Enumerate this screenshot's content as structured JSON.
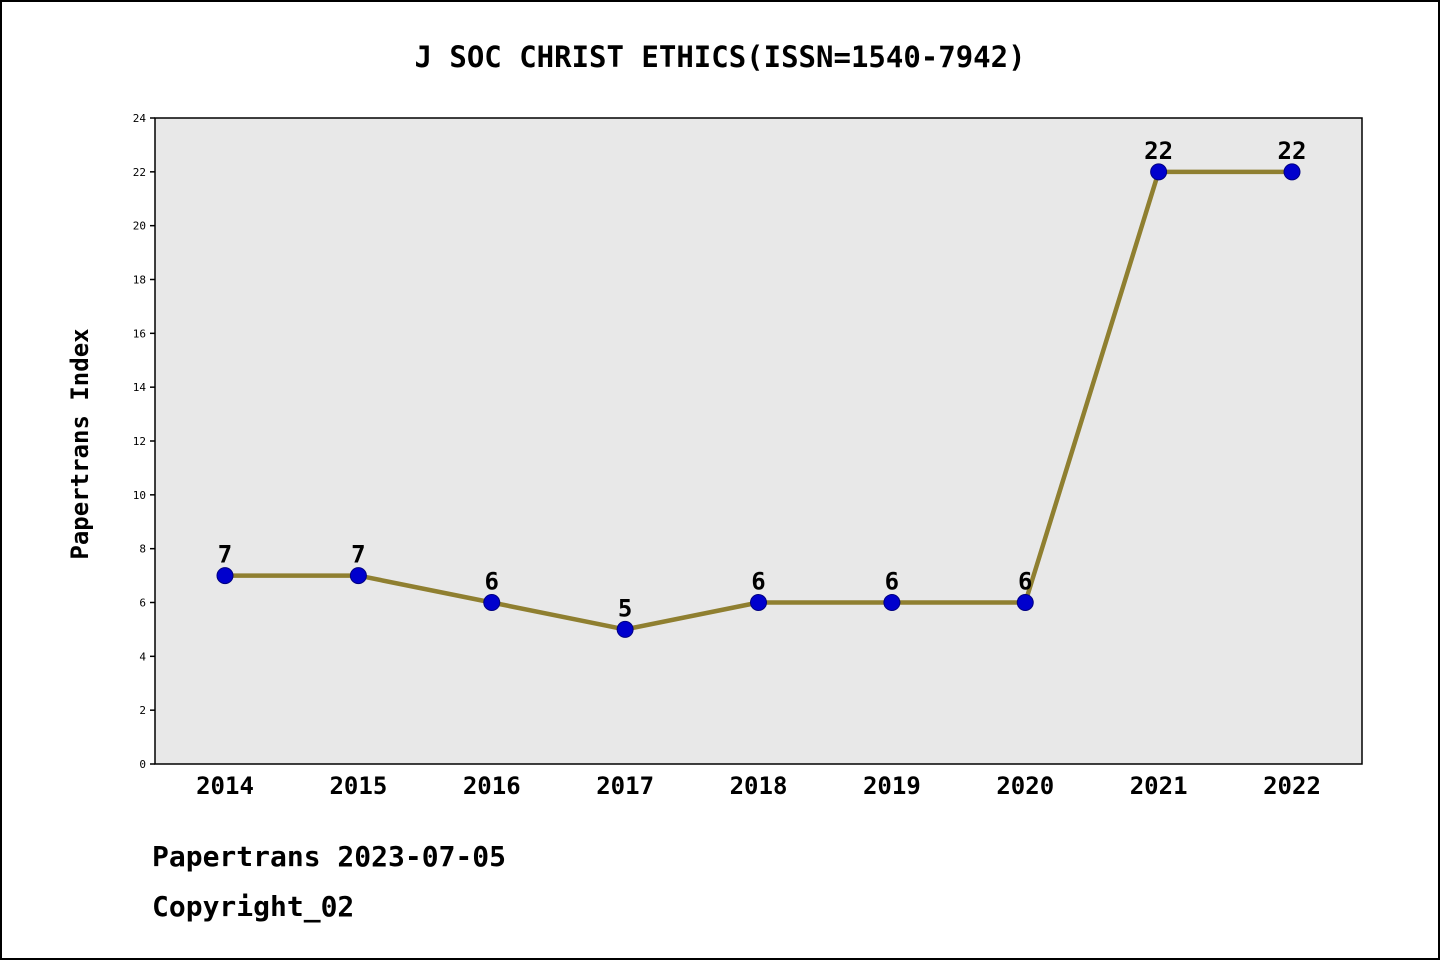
{
  "page": {
    "footer_line1": "Papertrans 2023-07-05",
    "footer_line2": "Copyright_02"
  },
  "chart_data": {
    "type": "line",
    "title": "J SOC CHRIST ETHICS(ISSN=1540-7942)",
    "xlabel": "",
    "ylabel": "Papertrans Index",
    "categories": [
      "2014",
      "2015",
      "2016",
      "2017",
      "2018",
      "2019",
      "2020",
      "2021",
      "2022"
    ],
    "values": [
      7,
      7,
      6,
      5,
      6,
      6,
      6,
      22,
      22
    ],
    "ylim": [
      0,
      24
    ],
    "ytick_step": 2,
    "grid": false,
    "legend_position": "none",
    "colors": {
      "line": "#8f7f30",
      "marker": "#0000cd",
      "plot_bg": "#e8e8e8",
      "axis": "#000000",
      "text": "#000000"
    }
  }
}
